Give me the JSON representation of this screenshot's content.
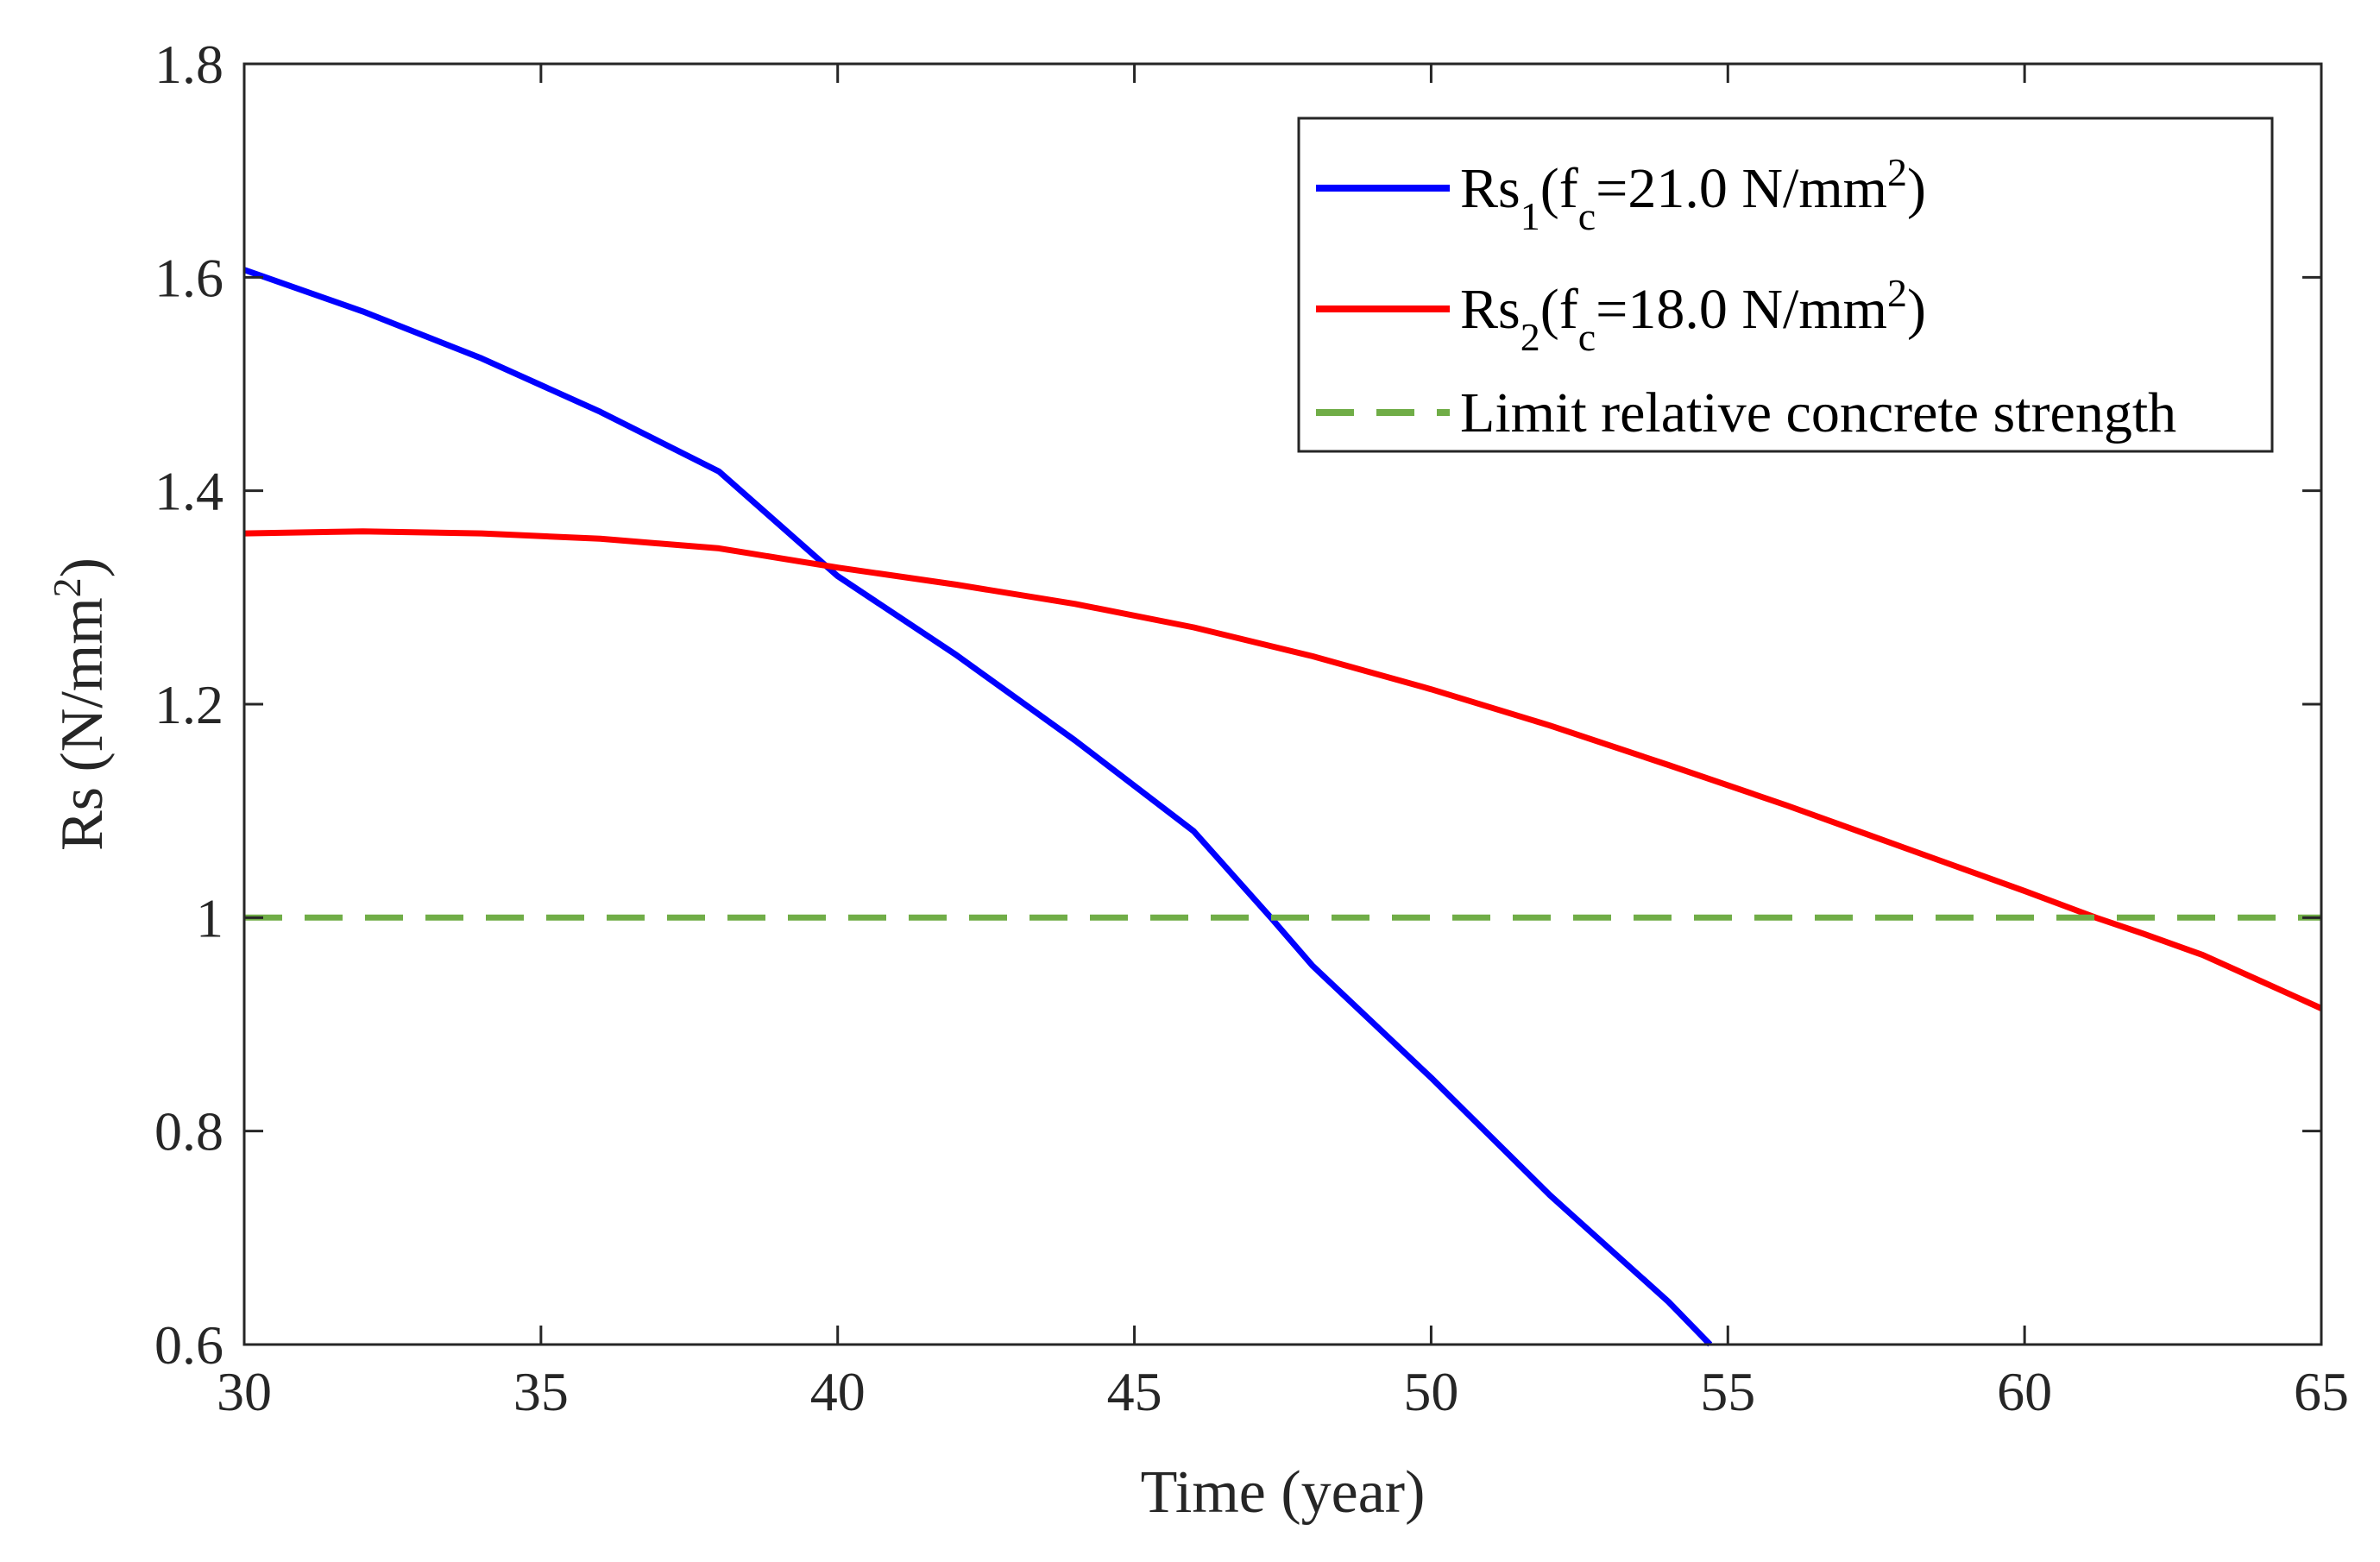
{
  "chart_data": {
    "type": "line",
    "title": "",
    "xlabel": "Time (year)",
    "ylabel": "Rs (N/mm²)",
    "ylabel_parts": {
      "main": "Rs (N/mm",
      "sup": "2",
      "close": ")"
    },
    "xlim": [
      30,
      65
    ],
    "ylim": [
      0.6,
      1.8
    ],
    "xticks": [
      30,
      35,
      40,
      45,
      50,
      55,
      60,
      65
    ],
    "yticks": [
      0.6,
      0.8,
      1,
      1.2,
      1.4,
      1.6,
      1.8
    ],
    "ytick_labels": [
      "0.6",
      "0.8",
      "1",
      "1.2",
      "1.4",
      "1.6",
      "1.8"
    ],
    "grid": false,
    "legend_position": "top-right",
    "series": [
      {
        "name": "Rs1(fc=21.0 N/mm2)",
        "label_parts": {
          "base": "Rs",
          "sub": "1",
          "open": "(f",
          "sub2": "c",
          "mid": "=21.0 N/mm",
          "sup": "2",
          "close": ")"
        },
        "color": "#0000ff",
        "style": "solid",
        "x": [
          30,
          32,
          34,
          36,
          38,
          40,
          42,
          44,
          46,
          47.3,
          48,
          50,
          52,
          54,
          54.7
        ],
        "y": [
          1.607,
          1.568,
          1.524,
          1.474,
          1.418,
          1.32,
          1.246,
          1.166,
          1.081,
          1.0,
          0.955,
          0.85,
          0.74,
          0.64,
          0.6
        ]
      },
      {
        "name": "Rs2(fc=18.0 N/mm2)",
        "label_parts": {
          "base": "Rs",
          "sub": "2",
          "open": "(f",
          "sub2": "c",
          "mid": "=18.0 N/mm",
          "sup": "2",
          "close": ")"
        },
        "color": "#ff0000",
        "style": "solid",
        "x": [
          30,
          32,
          34,
          36,
          38,
          40,
          42,
          44,
          46,
          48,
          50,
          52,
          54,
          56,
          58,
          60,
          61.2,
          62,
          63,
          64,
          65
        ],
        "y": [
          1.36,
          1.362,
          1.36,
          1.355,
          1.346,
          1.328,
          1.312,
          1.294,
          1.272,
          1.245,
          1.214,
          1.18,
          1.143,
          1.105,
          1.065,
          1.025,
          1.0,
          0.985,
          0.965,
          0.94,
          0.915
        ]
      },
      {
        "name": "Limit relative concrete strength",
        "label_parts": {
          "base": "Limit relative concrete strength"
        },
        "color": "#70ad47",
        "style": "dashed",
        "x": [
          30,
          65
        ],
        "y": [
          1.0,
          1.0
        ]
      }
    ]
  }
}
